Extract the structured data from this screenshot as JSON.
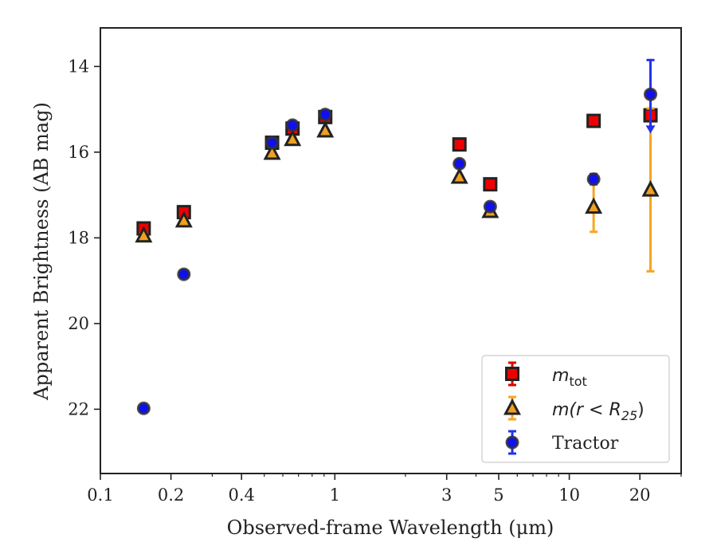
{
  "chart_data": {
    "type": "scatter",
    "title": "",
    "xlabel": "Observed-frame Wavelength (μm)",
    "ylabel": "Apparent Brightness (AB mag)",
    "xscale": "log",
    "yscale": "linear",
    "y_inverted": true,
    "xlim": [
      0.1,
      30
    ],
    "ylim": [
      23.5,
      13.1
    ],
    "x_ticks": [
      {
        "value": 0.1,
        "label": "0.1"
      },
      {
        "value": 0.2,
        "label": "0.2"
      },
      {
        "value": 0.4,
        "label": "0.4"
      },
      {
        "value": 1,
        "label": "1"
      },
      {
        "value": 3,
        "label": "3"
      },
      {
        "value": 5,
        "label": "5"
      },
      {
        "value": 10,
        "label": "10"
      },
      {
        "value": 20,
        "label": "20"
      }
    ],
    "x_minor_ticks": [
      0.3,
      0.5,
      0.6,
      0.7,
      0.8,
      0.9,
      2,
      4,
      6,
      7,
      8,
      9,
      30
    ],
    "y_ticks": [
      {
        "value": 14,
        "label": "14"
      },
      {
        "value": 16,
        "label": "16"
      },
      {
        "value": 18,
        "label": "18"
      },
      {
        "value": 20,
        "label": "20"
      },
      {
        "value": 22,
        "label": "22"
      }
    ],
    "grid": false,
    "legend_position": "bottom-right",
    "series": [
      {
        "name_text": "m",
        "name_subscript": "tot",
        "marker": "square",
        "color": "#ee0000",
        "edgecolor": "#222222",
        "errcolor": "#dd0000",
        "points": [
          {
            "x": 0.153,
            "y": 17.78,
            "err": 0.12
          },
          {
            "x": 0.227,
            "y": 17.4,
            "err": 0.08
          },
          {
            "x": 0.54,
            "y": 15.78,
            "err": 0.05
          },
          {
            "x": 0.66,
            "y": 15.45,
            "err": 0.05
          },
          {
            "x": 0.91,
            "y": 15.18,
            "err": 0.06
          },
          {
            "x": 3.4,
            "y": 15.82,
            "err": 0.04
          },
          {
            "x": 4.6,
            "y": 16.75,
            "err": 0.04
          },
          {
            "x": 12.7,
            "y": 15.27,
            "err": 0.04
          },
          {
            "x": 22.2,
            "y": 15.14,
            "err": 0.08
          }
        ]
      },
      {
        "name_text": "m(r < R",
        "name_subscript": "25",
        "name_suffix": ")",
        "marker": "triangle",
        "color": "#f0a020",
        "edgecolor": "#222222",
        "errcolor": "#f5a623",
        "points": [
          {
            "x": 0.153,
            "y": 17.95,
            "err": 0.05
          },
          {
            "x": 0.227,
            "y": 17.6,
            "err": 0.05
          },
          {
            "x": 0.54,
            "y": 16.02,
            "err": 0.04
          },
          {
            "x": 0.66,
            "y": 15.7,
            "err": 0.04
          },
          {
            "x": 0.91,
            "y": 15.5,
            "err": 0.04
          },
          {
            "x": 3.4,
            "y": 16.58,
            "err": 0.04
          },
          {
            "x": 4.6,
            "y": 17.38,
            "err": 0.05
          },
          {
            "x": 12.7,
            "y": 17.28,
            "err": 0.58
          },
          {
            "x": 22.2,
            "y": 16.88,
            "err": 1.9
          }
        ]
      },
      {
        "name": "Tractor",
        "marker": "circle",
        "color": "#1010ee",
        "edgecolor": "#333333",
        "errcolor": "#2233ee",
        "points": [
          {
            "x": 0.153,
            "y": 21.98,
            "err": 0.05
          },
          {
            "x": 0.227,
            "y": 18.85,
            "err": 0.05
          },
          {
            "x": 0.54,
            "y": 15.78,
            "err": 0.04
          },
          {
            "x": 0.66,
            "y": 15.37,
            "err": 0.04
          },
          {
            "x": 0.91,
            "y": 15.12,
            "err": 0.04
          },
          {
            "x": 3.4,
            "y": 16.27,
            "err": 0.05
          },
          {
            "x": 4.6,
            "y": 17.27,
            "err": 0.07
          },
          {
            "x": 12.7,
            "y": 16.63,
            "err": 0.12
          },
          {
            "x": 22.2,
            "y": 14.65,
            "err": 0.8,
            "upper_limit": true
          }
        ]
      }
    ]
  }
}
